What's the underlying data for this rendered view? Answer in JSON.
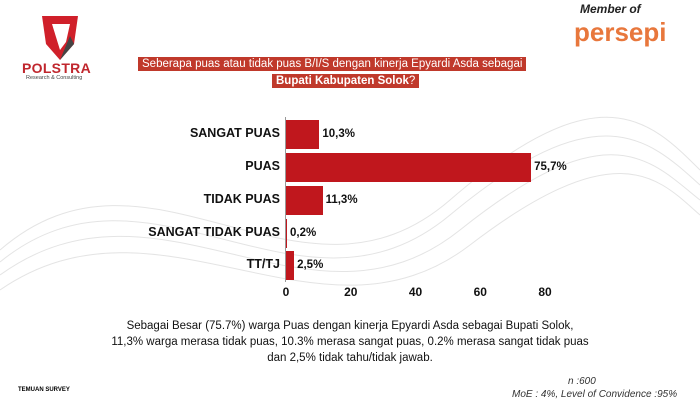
{
  "header": {
    "logo_name": "POLSTRA",
    "logo_sub": "Research & Consulting",
    "member_of": "Member of",
    "member_logo": "persepi"
  },
  "question": {
    "line1": "Seberapa puas atau tidak puas B/I/S dengan kinerja Epyardi Asda sebagai",
    "line2_bold": "Bupati Kabupaten Solok",
    "line2_end": "?"
  },
  "chart_data": {
    "type": "bar",
    "orientation": "horizontal",
    "categories": [
      "SANGAT PUAS",
      "PUAS",
      "TIDAK PUAS",
      "SANGAT TIDAK PUAS",
      "TT/TJ"
    ],
    "values": [
      10.3,
      75.7,
      11.3,
      0.2,
      2.5
    ],
    "data_labels": [
      "10,3%",
      "75,7%",
      "11,3%",
      "0,2%",
      "2,5%"
    ],
    "xlim": [
      0,
      80
    ],
    "xticks": [
      "0",
      "20",
      "40",
      "60",
      "80"
    ],
    "grid": false,
    "bar_color": "#c0171d"
  },
  "summary": "Sebagai Besar (75.7%) warga Puas dengan kinerja Epyardi Asda sebagai Bupati Solok, 11,3% warga merasa tidak puas, 10.3% merasa sangat puas, 0.2% merasa sangat tidak puas dan 2,5% tidak tahu/tidak jawab.",
  "footer": {
    "temuan": "TEMUAN SURVEY",
    "n": "n :600",
    "moe": "MoE : 4%, Level of Convidence :95%"
  }
}
